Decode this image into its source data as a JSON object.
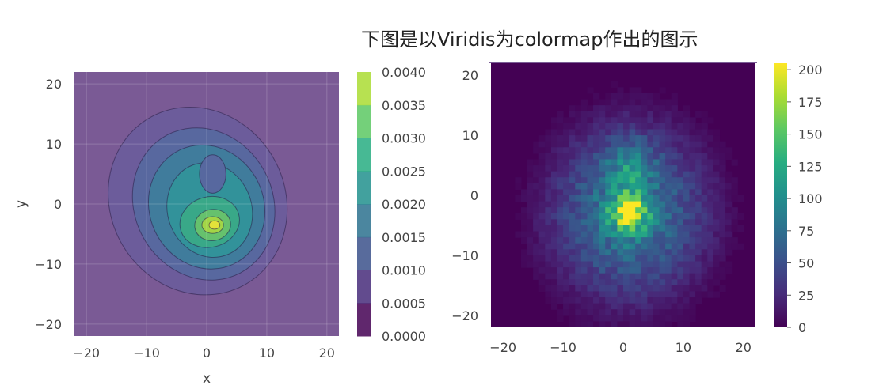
{
  "title": "下图是以Viridis为colormap作出的图示",
  "chart_data": [
    {
      "type": "contour",
      "title": "",
      "xlabel": "x",
      "ylabel": "y",
      "xlim": [
        -22,
        22
      ],
      "ylim": [
        -22,
        22
      ],
      "xticks": [
        "−20",
        "−10",
        "0",
        "10",
        "20"
      ],
      "yticks": [
        "20",
        "10",
        "0",
        "−10",
        "−20"
      ],
      "grid": true,
      "colormap": "viridis",
      "density_peak": {
        "x": 1,
        "y": -3.5
      },
      "colorbar": {
        "min": 0,
        "max": 0.004,
        "ticks": [
          "0.0040",
          "0.0035",
          "0.0030",
          "0.0025",
          "0.0020",
          "0.0015",
          "0.0010",
          "0.0005",
          "0.0000"
        ],
        "levels": [
          0,
          0.0005,
          0.001,
          0.0015,
          0.002,
          0.0025,
          0.003,
          0.0035,
          0.004
        ],
        "colors": [
          "#440154",
          "#472c7a",
          "#3b518b",
          "#2c718e",
          "#21908d",
          "#27ad81",
          "#5cc863",
          "#aadc32",
          "#fde725"
        ]
      }
    },
    {
      "type": "heatmap",
      "title": "",
      "xlabel": "",
      "ylabel": "",
      "xlim": [
        -22,
        22
      ],
      "ylim": [
        -22,
        22
      ],
      "xticks": [
        "−20",
        "−10",
        "0",
        "10",
        "20"
      ],
      "yticks": [
        "20",
        "10",
        "0",
        "−10",
        "−20"
      ],
      "colormap": "viridis",
      "peak": {
        "x": 1,
        "y": -3,
        "count": 205
      },
      "secondary_peak": {
        "x": 1,
        "y": 5,
        "count": 120
      },
      "colorbar": {
        "min": 0,
        "max": 205,
        "ticks": [
          "200",
          "175",
          "150",
          "125",
          "100",
          "75",
          "50",
          "25",
          "0"
        ]
      }
    }
  ]
}
